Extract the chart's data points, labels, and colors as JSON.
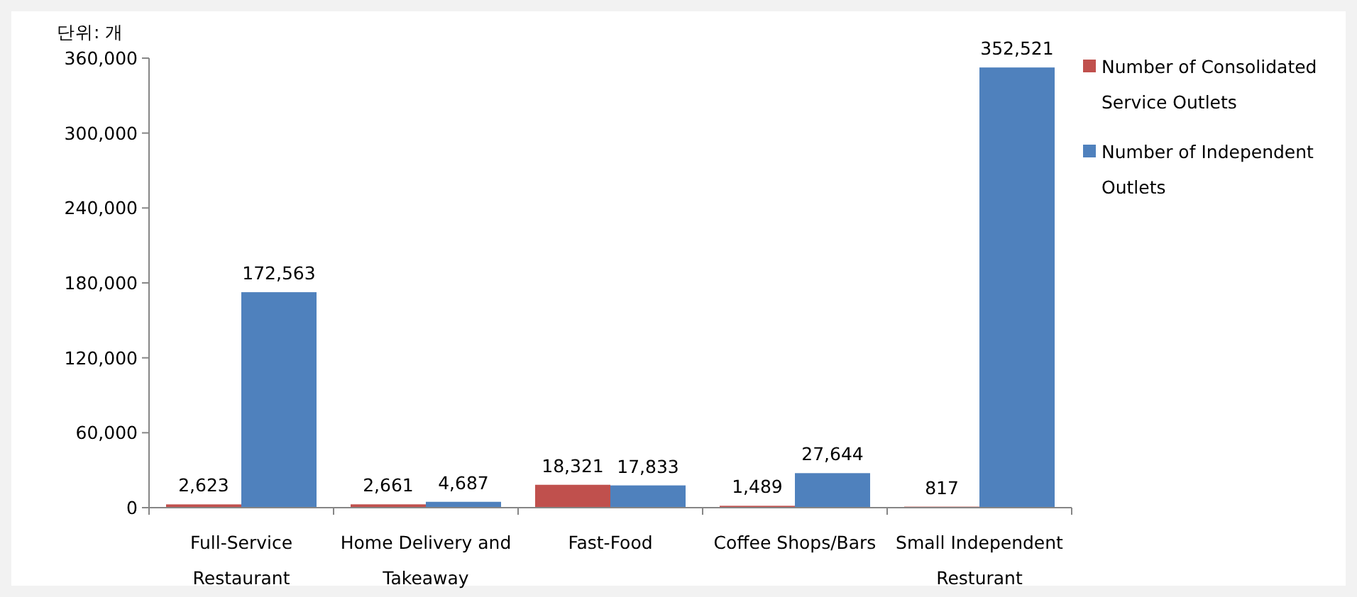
{
  "chart_data": {
    "type": "bar",
    "ylabel": "단위: 개",
    "categories": [
      "Full-Service Restaurant",
      "Home Delivery and Takeaway",
      "Fast-Food",
      "Coffee Shops/Bars",
      "Small Independent Resturant"
    ],
    "series": [
      {
        "name": "Number of Consolidated Service Outlets",
        "color": "#c0504d",
        "values": [
          2623,
          2661,
          18321,
          1489,
          817
        ],
        "value_labels": [
          "2,623",
          "2,661",
          "18,321",
          "1,489",
          "817"
        ]
      },
      {
        "name": "Number of Independent Outlets",
        "color": "#4f81bd",
        "values": [
          172563,
          4687,
          17833,
          27644,
          352521
        ],
        "value_labels": [
          "172,563",
          "4,687",
          "17,833",
          "27,644",
          "352,521"
        ]
      }
    ],
    "ylim": [
      0,
      360000
    ],
    "yticks": [
      {
        "value": 0,
        "label": "0"
      },
      {
        "value": 60000,
        "label": "60,000"
      },
      {
        "value": 120000,
        "label": "120,000"
      },
      {
        "value": 180000,
        "label": "180,000"
      },
      {
        "value": 240000,
        "label": "240,000"
      },
      {
        "value": 300000,
        "label": "300,000"
      },
      {
        "value": 360000,
        "label": "360,000"
      }
    ],
    "grid": false,
    "legend": "right"
  }
}
